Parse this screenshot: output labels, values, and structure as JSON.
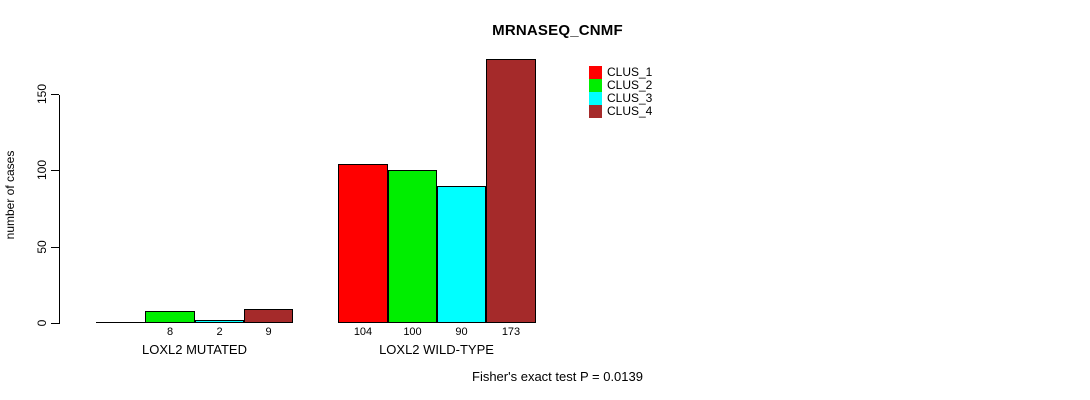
{
  "chart_data": {
    "type": "bar",
    "title": "MRNASEQ_CNMF",
    "ylabel": "number of cases",
    "xlabel": "",
    "yticks": [
      0,
      50,
      100,
      150
    ],
    "ylim": [
      0,
      175
    ],
    "grid": false,
    "legend_position": "top-right",
    "categories": [
      "LOXL2 MUTATED",
      "LOXL2 WILD-TYPE"
    ],
    "series": [
      {
        "name": "CLUS_1",
        "color": "#ff0000",
        "values": [
          0,
          104
        ]
      },
      {
        "name": "CLUS_2",
        "color": "#00ee00",
        "values": [
          8,
          100
        ]
      },
      {
        "name": "CLUS_3",
        "color": "#00ffff",
        "values": [
          2,
          90
        ]
      },
      {
        "name": "CLUS_4",
        "color": "#a52a2a",
        "values": [
          9,
          173
        ]
      }
    ],
    "bar_value_labels": [
      [
        "",
        "8",
        "2",
        "9"
      ],
      [
        "104",
        "100",
        "90",
        "173"
      ]
    ],
    "footnote": "Fisher's exact test P = 0.0139"
  }
}
